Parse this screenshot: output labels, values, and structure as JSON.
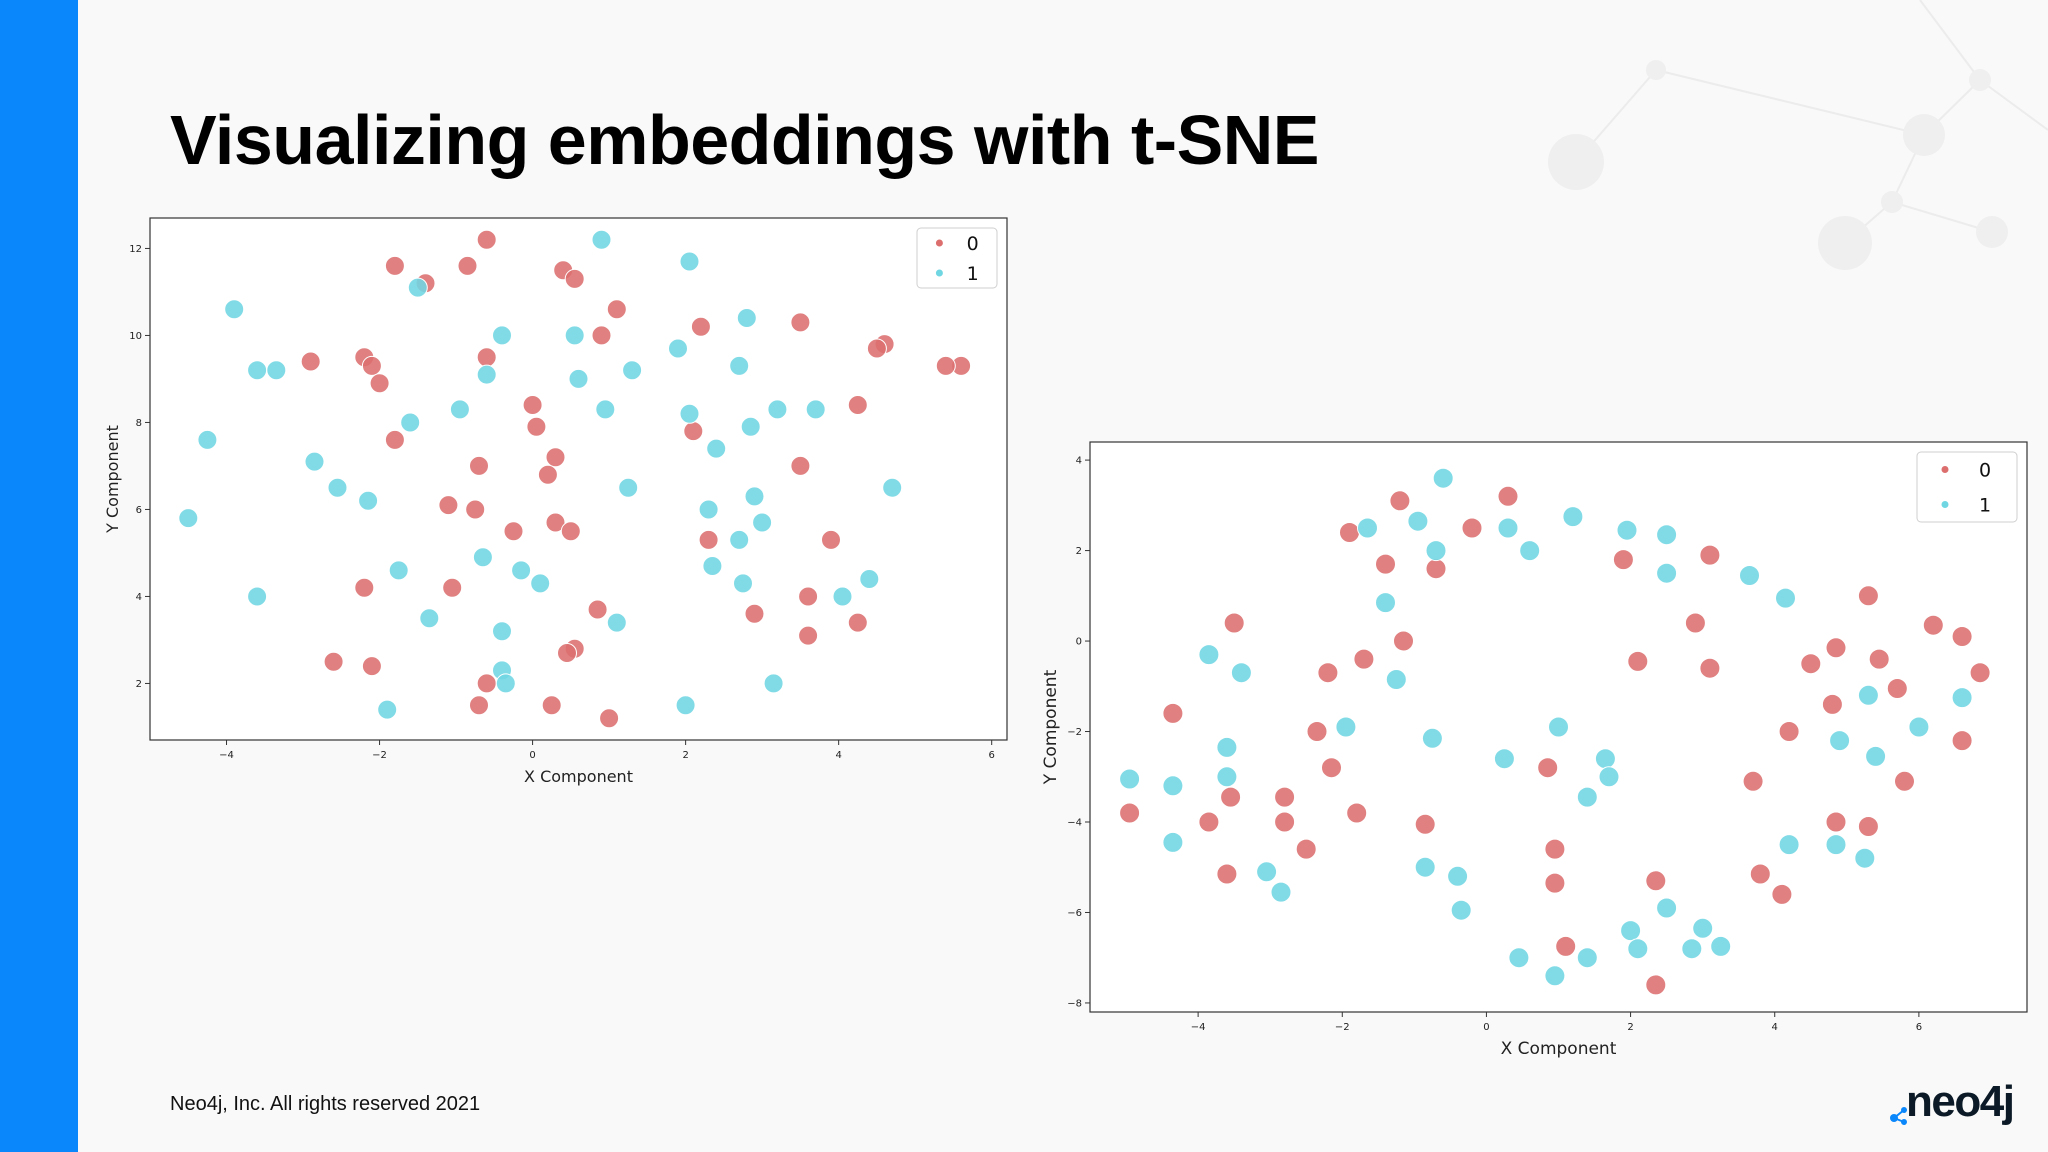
{
  "slide": {
    "title": "Visualizing embeddings with t-SNE",
    "footer": "Neo4j, Inc. All rights reserved 2021",
    "logo_text": "neo4j"
  },
  "colors": {
    "accent_bar": "#0a87fa",
    "class_0": "#dc6e6e",
    "class_1": "#6fd6e2"
  },
  "chart_data": [
    {
      "type": "scatter",
      "xlabel": "X Component",
      "ylabel": "Y Component",
      "xlim": [
        -5,
        6.2
      ],
      "ylim": [
        0.7,
        12.7
      ],
      "xticks": [
        -4,
        -2,
        0,
        2,
        4,
        6
      ],
      "yticks": [
        2,
        4,
        6,
        8,
        10,
        12
      ],
      "legend_position": "top-right",
      "grid": false,
      "series": [
        {
          "name": "0",
          "color": "#dc6e6e",
          "points": [
            [
              -0.6,
              12.2
            ],
            [
              -1.8,
              11.6
            ],
            [
              -1.4,
              11.2
            ],
            [
              -0.85,
              11.6
            ],
            [
              0.4,
              11.5
            ],
            [
              0.55,
              11.3
            ],
            [
              1.1,
              10.6
            ],
            [
              2.2,
              10.2
            ],
            [
              3.5,
              10.3
            ],
            [
              0.9,
              10
            ],
            [
              4.6,
              9.8
            ],
            [
              4.5,
              9.7
            ],
            [
              5.6,
              9.3
            ],
            [
              5.4,
              9.3
            ],
            [
              -2.9,
              9.4
            ],
            [
              -2.2,
              9.5
            ],
            [
              -2.1,
              9.3
            ],
            [
              -2,
              8.9
            ],
            [
              -0.6,
              9.5
            ],
            [
              0,
              8.4
            ],
            [
              0.05,
              7.9
            ],
            [
              -1.8,
              7.6
            ],
            [
              2.1,
              7.8
            ],
            [
              4.25,
              8.4
            ],
            [
              0.3,
              7.2
            ],
            [
              0.2,
              6.8
            ],
            [
              -0.7,
              7
            ],
            [
              3.5,
              7
            ],
            [
              -1.1,
              6.1
            ],
            [
              -0.75,
              6
            ],
            [
              0.3,
              5.7
            ],
            [
              0.5,
              5.5
            ],
            [
              -0.25,
              5.5
            ],
            [
              2.3,
              5.3
            ],
            [
              3.9,
              5.3
            ],
            [
              -2.2,
              4.2
            ],
            [
              -1.05,
              4.2
            ],
            [
              3.6,
              4
            ],
            [
              0.85,
              3.7
            ],
            [
              2.9,
              3.6
            ],
            [
              4.25,
              3.4
            ],
            [
              3.6,
              3.1
            ],
            [
              0.55,
              2.8
            ],
            [
              0.45,
              2.7
            ],
            [
              -2.6,
              2.5
            ],
            [
              -2.1,
              2.4
            ],
            [
              -0.6,
              2
            ],
            [
              -0.7,
              1.5
            ],
            [
              0.25,
              1.5
            ],
            [
              1,
              1.2
            ]
          ]
        },
        {
          "name": "1",
          "color": "#6fd6e2",
          "points": [
            [
              0.9,
              12.2
            ],
            [
              2.05,
              11.7
            ],
            [
              -1.5,
              11.1
            ],
            [
              -3.9,
              10.6
            ],
            [
              2.8,
              10.4
            ],
            [
              -0.4,
              10
            ],
            [
              0.55,
              10
            ],
            [
              1.9,
              9.7
            ],
            [
              -3.6,
              9.2
            ],
            [
              -3.35,
              9.2
            ],
            [
              -0.6,
              9.1
            ],
            [
              0.6,
              9
            ],
            [
              1.3,
              9.2
            ],
            [
              2.7,
              9.3
            ],
            [
              -1.6,
              8
            ],
            [
              -0.95,
              8.3
            ],
            [
              0.95,
              8.3
            ],
            [
              2.05,
              8.2
            ],
            [
              3.2,
              8.3
            ],
            [
              3.7,
              8.3
            ],
            [
              2.85,
              7.9
            ],
            [
              -4.25,
              7.6
            ],
            [
              2.4,
              7.4
            ],
            [
              -2.85,
              7.1
            ],
            [
              -2.55,
              6.5
            ],
            [
              -2.15,
              6.2
            ],
            [
              1.25,
              6.5
            ],
            [
              2.9,
              6.3
            ],
            [
              4.7,
              6.5
            ],
            [
              2.3,
              6
            ],
            [
              -4.5,
              5.8
            ],
            [
              3,
              5.7
            ],
            [
              2.7,
              5.3
            ],
            [
              -1.75,
              4.6
            ],
            [
              -0.65,
              4.9
            ],
            [
              -0.15,
              4.6
            ],
            [
              0.1,
              4.3
            ],
            [
              2.35,
              4.7
            ],
            [
              2.75,
              4.3
            ],
            [
              4.4,
              4.4
            ],
            [
              4.05,
              4
            ],
            [
              -3.6,
              4
            ],
            [
              -1.35,
              3.5
            ],
            [
              1.1,
              3.4
            ],
            [
              -0.4,
              3.2
            ],
            [
              -0.4,
              2.3
            ],
            [
              -0.35,
              2
            ],
            [
              3.15,
              2
            ],
            [
              -1.9,
              1.4
            ],
            [
              2,
              1.5
            ]
          ]
        }
      ]
    },
    {
      "type": "scatter",
      "xlabel": "X Component",
      "ylabel": "Y Component",
      "xlim": [
        -5.5,
        7.5
      ],
      "ylim": [
        -8.2,
        4.4
      ],
      "xticks": [
        -4,
        -2,
        0,
        2,
        4,
        6
      ],
      "yticks": [
        -8,
        -6,
        -4,
        -2,
        0,
        2,
        4
      ],
      "legend_position": "top-right",
      "grid": false,
      "series": [
        {
          "name": "0",
          "color": "#dc6e6e",
          "points": [
            [
              -1.2,
              3.1
            ],
            [
              0.3,
              3.2
            ],
            [
              -1.9,
              2.4
            ],
            [
              -0.2,
              2.5
            ],
            [
              -1.4,
              1.7
            ],
            [
              -0.7,
              1.6
            ],
            [
              1.9,
              1.8
            ],
            [
              3.1,
              1.9
            ],
            [
              -3.5,
              0.4
            ],
            [
              -1.15,
              0
            ],
            [
              2.9,
              0.4
            ],
            [
              -1.7,
              -0.4
            ],
            [
              2.1,
              -0.45
            ],
            [
              3.1,
              -0.6
            ],
            [
              4.5,
              -0.5
            ],
            [
              4.85,
              -0.15
            ],
            [
              5.45,
              -0.4
            ],
            [
              5.3,
              1
            ],
            [
              6.2,
              0.35
            ],
            [
              6.6,
              0.1
            ],
            [
              6.85,
              -0.7
            ],
            [
              5.7,
              -1.05
            ],
            [
              -2.2,
              -0.7
            ],
            [
              -4.35,
              -1.6
            ],
            [
              -2.35,
              -2
            ],
            [
              4.2,
              -2
            ],
            [
              4.8,
              -1.4
            ],
            [
              6.6,
              -2.2
            ],
            [
              -2.15,
              -2.8
            ],
            [
              0.85,
              -2.8
            ],
            [
              3.7,
              -3.1
            ],
            [
              5.8,
              -3.1
            ],
            [
              -3.55,
              -3.45
            ],
            [
              -2.8,
              -3.45
            ],
            [
              -4.95,
              -3.8
            ],
            [
              -3.85,
              -4
            ],
            [
              -2.8,
              -4
            ],
            [
              -1.8,
              -3.8
            ],
            [
              -0.85,
              -4.05
            ],
            [
              4.85,
              -4
            ],
            [
              5.3,
              -4.1
            ],
            [
              -3.6,
              -5.15
            ],
            [
              -2.5,
              -4.6
            ],
            [
              0.95,
              -4.6
            ],
            [
              0.95,
              -5.35
            ],
            [
              2.35,
              -5.3
            ],
            [
              3.8,
              -5.15
            ],
            [
              4.1,
              -5.6
            ],
            [
              1.1,
              -6.75
            ],
            [
              2.35,
              -7.6
            ]
          ]
        },
        {
          "name": "1",
          "color": "#6fd6e2",
          "points": [
            [
              -0.6,
              3.6
            ],
            [
              -1.65,
              2.5
            ],
            [
              -0.95,
              2.65
            ],
            [
              0.3,
              2.5
            ],
            [
              0.6,
              2
            ],
            [
              1.2,
              2.75
            ],
            [
              -0.7,
              2
            ],
            [
              1.95,
              2.45
            ],
            [
              2.5,
              2.35
            ],
            [
              2.5,
              1.5
            ],
            [
              3.65,
              1.45
            ],
            [
              4.15,
              0.95
            ],
            [
              -1.4,
              0.85
            ],
            [
              -3.85,
              -0.3
            ],
            [
              -3.4,
              -0.7
            ],
            [
              -1.25,
              -0.85
            ],
            [
              1,
              -1.9
            ],
            [
              -0.75,
              -2.15
            ],
            [
              -1.95,
              -1.9
            ],
            [
              -3.6,
              -2.35
            ],
            [
              6,
              -1.9
            ],
            [
              4.9,
              -2.2
            ],
            [
              5.3,
              -1.2
            ],
            [
              6.6,
              -1.25
            ],
            [
              5.4,
              -2.55
            ],
            [
              0.25,
              -2.6
            ],
            [
              1.65,
              -2.6
            ],
            [
              1.7,
              -3
            ],
            [
              -3.6,
              -3
            ],
            [
              -4.95,
              -3.05
            ],
            [
              -4.35,
              -3.2
            ],
            [
              1.4,
              -3.45
            ],
            [
              -4.35,
              -4.45
            ],
            [
              4.2,
              -4.5
            ],
            [
              4.85,
              -4.5
            ],
            [
              5.25,
              -4.8
            ],
            [
              -0.85,
              -5
            ],
            [
              -0.4,
              -5.2
            ],
            [
              -3.05,
              -5.1
            ],
            [
              -2.85,
              -5.55
            ],
            [
              -0.35,
              -5.95
            ],
            [
              2.5,
              -5.9
            ],
            [
              2,
              -6.4
            ],
            [
              3,
              -6.35
            ],
            [
              2.1,
              -6.8
            ],
            [
              2.85,
              -6.8
            ],
            [
              3.25,
              -6.75
            ],
            [
              0.45,
              -7
            ],
            [
              1.4,
              -7
            ],
            [
              0.95,
              -7.4
            ]
          ]
        }
      ]
    }
  ]
}
